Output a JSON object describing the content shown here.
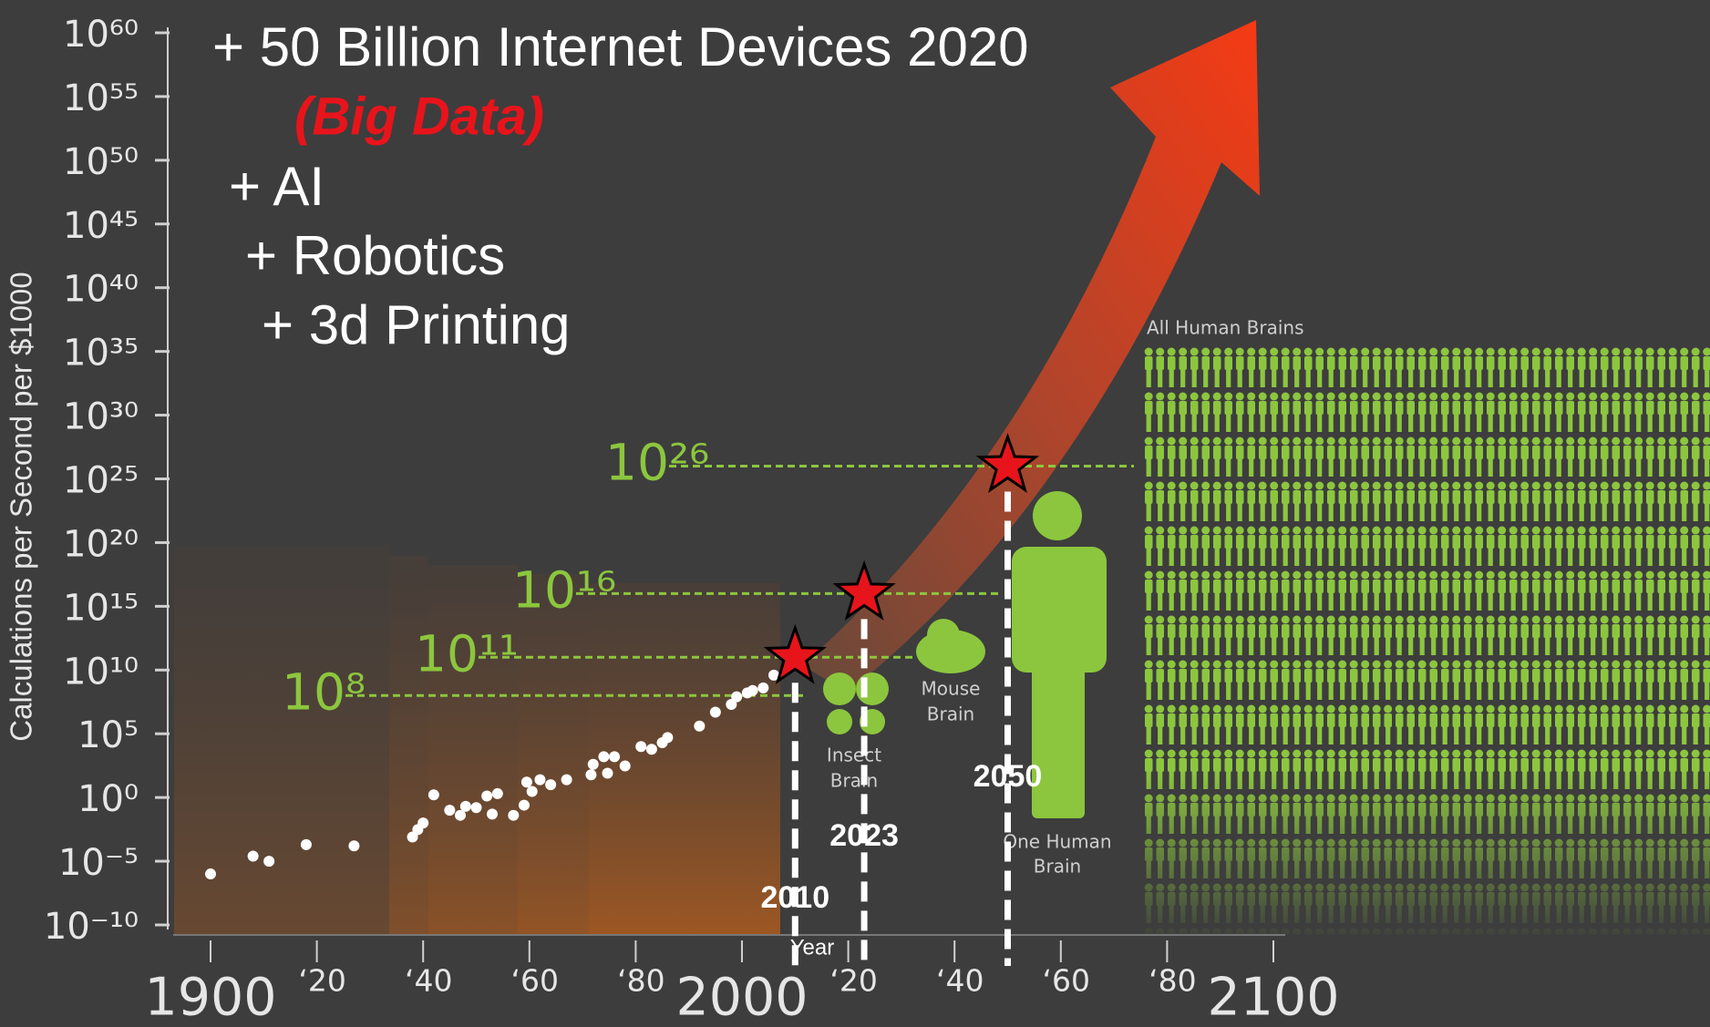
{
  "chart_data": {
    "type": "scatter",
    "y_label": "Calculations per Second per $1000",
    "x_label": "Year",
    "log_scale": true,
    "xlim": [
      1900,
      2100
    ],
    "ylim": [
      1e-10,
      1e+60
    ],
    "xticks": [
      1900,
      {
        "value": 1920,
        "label": "‘20"
      },
      {
        "value": 1940,
        "label": "‘40"
      },
      {
        "value": 1960,
        "label": "‘60"
      },
      {
        "value": 1980,
        "label": "‘80"
      },
      2000,
      {
        "value": 2020,
        "label": "‘20"
      },
      {
        "value": 2040,
        "label": "‘40"
      },
      {
        "value": 2060,
        "label": "‘60"
      },
      {
        "value": 2080,
        "label": "‘80"
      },
      2100
    ],
    "yticks": [
      {
        "value": 1e+60,
        "label": "10⁶⁰"
      },
      {
        "value": 1e+55,
        "label": "10⁵⁵"
      },
      {
        "value": 1e+50,
        "label": "10⁵⁰"
      },
      {
        "value": 1e+45,
        "label": "10⁴⁵"
      },
      {
        "value": 1e+40,
        "label": "10⁴⁰"
      },
      {
        "value": 1e+35,
        "label": "10³⁵"
      },
      {
        "value": 1e+30,
        "label": "10³⁰"
      },
      {
        "value": 1e+25,
        "label": "10²⁵"
      },
      {
        "value": 1e+20,
        "label": "10²⁰"
      },
      {
        "value": 1000000000000000.0,
        "label": "10¹⁵"
      },
      {
        "value": 10000000000.0,
        "label": "10¹⁰"
      },
      {
        "value": 100000.0,
        "label": "10⁵"
      },
      {
        "value": 1,
        "label": "10⁰"
      },
      {
        "value": 1e-05,
        "label": "10⁻⁵"
      },
      {
        "value": 1e-10,
        "label": "10⁻¹⁰"
      }
    ],
    "point_color": "#ffffff",
    "x": [
      1900,
      1908,
      1911,
      1918,
      1927,
      1938,
      1939,
      1940,
      1942,
      1945,
      1947,
      1948,
      1950,
      1952,
      1954,
      1953,
      1957,
      1959,
      1959.5,
      1960.5,
      1962,
      1964,
      1967,
      1972,
      1974,
      1976,
      1971.6,
      1974.7,
      1978,
      1981,
      1983,
      1985,
      1986,
      1992,
      1995,
      1998,
      1999,
      2001,
      2002,
      2004,
      2006
    ],
    "values": [
      1e-06,
      2.5e-05,
      1e-05,
      0.0002,
      0.00016,
      0.0008,
      0.003,
      0.01,
      1.6,
      0.1,
      0.04,
      0.2,
      0.16,
      1.3,
      2,
      0.05,
      0.04,
      0.25,
      16,
      3,
      25,
      10,
      25,
      400,
      1600,
      1600,
      60,
      80,
      300,
      10000.0,
      6000.0,
      20000.0,
      50000.0,
      400000.0,
      5000000.0,
      20000000.0,
      80000000.0,
      160000000.0,
      250000000.0,
      400000000.0,
      4000000000.0
    ],
    "levels": [
      {
        "value": 100000000.0,
        "label": "10⁸"
      },
      {
        "value": 100000000000.0,
        "label": "10¹¹"
      },
      {
        "value": 1e+16,
        "label": "10¹⁶"
      },
      {
        "value": 1e+26,
        "label": "10²⁶"
      }
    ],
    "level_color": "#8cc63e",
    "milestones": {
      "x": [
        2010,
        2023,
        2050
      ],
      "values": [
        100000000000.0,
        1e+16,
        1e+26
      ],
      "color": "#e8141b"
    },
    "annotations": [
      "+ 50 Billion Internet Devices 2020",
      "(Big Data)",
      "+ AI",
      "+ Robotics",
      "+ 3d Printing"
    ],
    "brains": {
      "insect": [
        "Insect",
        "Brain"
      ],
      "mouse": [
        "Mouse",
        "Brain"
      ],
      "human": [
        "One Human",
        "Brain"
      ],
      "all": "All Human Brains"
    }
  }
}
